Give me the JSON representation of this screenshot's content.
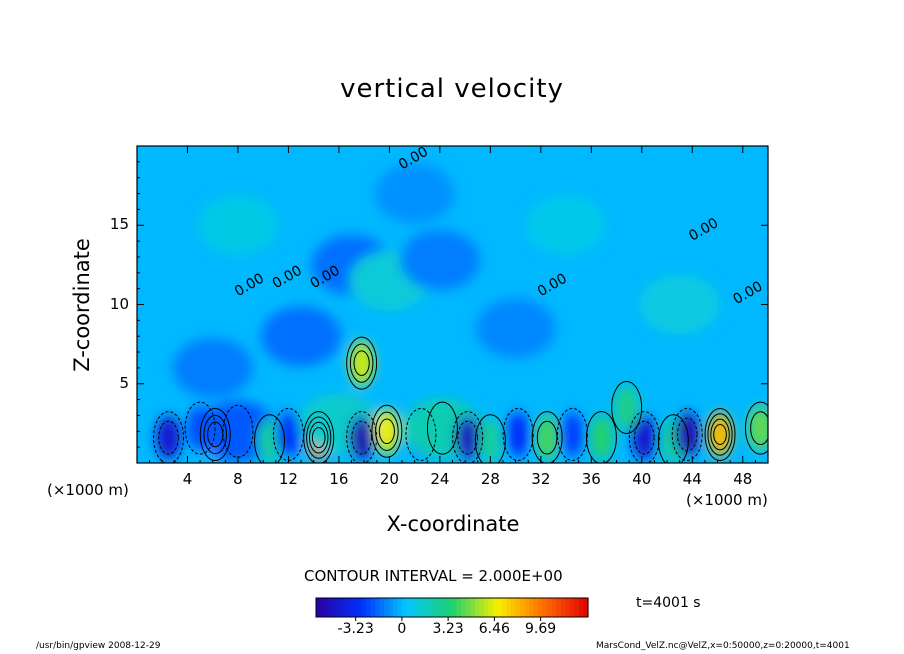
{
  "chart_data": {
    "type": "heatmap",
    "title": "vertical velocity",
    "xlabel": "X-coordinate",
    "ylabel": "Z-coordinate",
    "x_scale_label": "(×1000 m)",
    "x_ticks": [
      "4",
      "8",
      "12",
      "16",
      "20",
      "24",
      "28",
      "32",
      "36",
      "40",
      "44",
      "48"
    ],
    "y_ticks": [
      "5",
      "10",
      "15"
    ],
    "xlim": [
      0,
      50
    ],
    "ylim": [
      0,
      20
    ],
    "x_tick_values": [
      4,
      8,
      12,
      16,
      20,
      24,
      28,
      32,
      36,
      40,
      44,
      48
    ],
    "y_tick_values": [
      5,
      10,
      15
    ],
    "contour_interval_label": "CONTOUR INTERVAL = 2.000E+00",
    "contour_interval": 2.0,
    "zero_contour_labels": [
      "0.00",
      "0.00",
      "0.00",
      "0.00",
      "0.00",
      "0.00",
      "0.00"
    ],
    "colorbar": {
      "ticks": [
        "-3.23",
        "0",
        "3.23",
        "6.46",
        "9.69"
      ],
      "tick_values": [
        -3.23,
        0,
        3.23,
        6.46,
        9.69
      ],
      "range": [
        -6.0,
        13.0
      ],
      "colors": [
        "#2a00a0",
        "#0030ff",
        "#00c8ff",
        "#20d070",
        "#f8f000",
        "#ff7000",
        "#e00000"
      ]
    },
    "cells": [
      {
        "x": 2.5,
        "z": 1.6,
        "w": -4.5
      },
      {
        "x": 5.0,
        "z": 2.2,
        "w": -2.5
      },
      {
        "x": 6.2,
        "z": 1.8,
        "w": 7.0
      },
      {
        "x": 8.0,
        "z": 2.0,
        "w": -2.0
      },
      {
        "x": 10.5,
        "z": 1.4,
        "w": 2.5
      },
      {
        "x": 12.0,
        "z": 1.8,
        "w": -3.0
      },
      {
        "x": 14.4,
        "z": 1.6,
        "w": 9.0
      },
      {
        "x": 16.0,
        "z": 2.5,
        "w": 1.5
      },
      {
        "x": 17.8,
        "z": 1.6,
        "w": -5.5
      },
      {
        "x": 19.8,
        "z": 2.0,
        "w": 6.5
      },
      {
        "x": 22.5,
        "z": 1.8,
        "w": -3.5
      },
      {
        "x": 24.2,
        "z": 2.2,
        "w": 2.0
      },
      {
        "x": 26.2,
        "z": 1.6,
        "w": -5.0
      },
      {
        "x": 28.0,
        "z": 1.4,
        "w": 2.5
      },
      {
        "x": 30.2,
        "z": 1.8,
        "w": -3.0
      },
      {
        "x": 32.5,
        "z": 1.6,
        "w": 4.0
      },
      {
        "x": 34.5,
        "z": 1.8,
        "w": -2.5
      },
      {
        "x": 36.8,
        "z": 1.6,
        "w": 3.5
      },
      {
        "x": 38.8,
        "z": 3.5,
        "w": 3.0
      },
      {
        "x": 40.2,
        "z": 1.6,
        "w": -4.5
      },
      {
        "x": 42.5,
        "z": 1.4,
        "w": 2.5
      },
      {
        "x": 43.6,
        "z": 1.8,
        "w": -5.5
      },
      {
        "x": 46.2,
        "z": 1.8,
        "w": 8.0
      },
      {
        "x": 49.4,
        "z": 2.2,
        "w": 4.5
      },
      {
        "x": 17.8,
        "z": 6.3,
        "w": 6.0
      },
      {
        "x": 13.0,
        "z": 8.0,
        "w": -1.5
      },
      {
        "x": 17.0,
        "z": 12.5,
        "w": -1.5
      },
      {
        "x": 20.0,
        "z": 11.5,
        "w": 1.2
      },
      {
        "x": 24.0,
        "z": 12.8,
        "w": -1.2
      },
      {
        "x": 30.0,
        "z": 8.5,
        "w": -1.0
      },
      {
        "x": 6.0,
        "z": 6.0,
        "w": -1.2
      },
      {
        "x": 43.0,
        "z": 10.0,
        "w": 1.0
      },
      {
        "x": 34.0,
        "z": 15.0,
        "w": 0.8
      },
      {
        "x": 8.0,
        "z": 15.0,
        "w": 0.9
      },
      {
        "x": 22.0,
        "z": 17.0,
        "w": -0.8
      }
    ]
  },
  "footer": {
    "left": "/usr/bin/gpview  2008-12-29",
    "right": "MarsCond_VelZ.nc@VelZ,x=0:50000,z=0:20000,t=4001"
  },
  "time_label": "t=4001 s"
}
